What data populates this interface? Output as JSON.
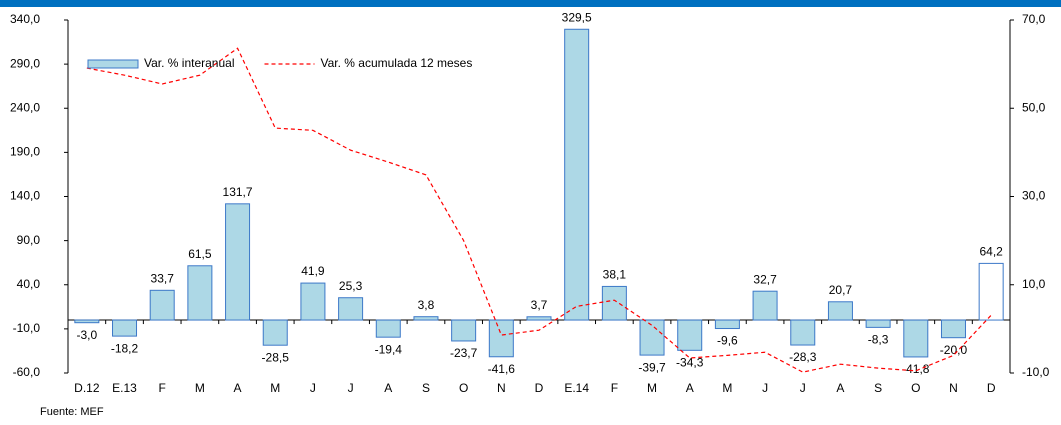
{
  "chart_data": {
    "type": "bar_line",
    "categories": [
      "D.12",
      "E.13",
      "F",
      "M",
      "A",
      "M",
      "J",
      "J",
      "A",
      "S",
      "O",
      "N",
      "D",
      "E.14",
      "F",
      "M",
      "A",
      "M",
      "J",
      "J",
      "A",
      "S",
      "O",
      "N",
      "D"
    ],
    "series": [
      {
        "name": "Var. % interanual",
        "type": "bar",
        "color": "#add8e6",
        "edge": "#3c78c8",
        "colors": [
          "#add8e6",
          "#add8e6",
          "#add8e6",
          "#add8e6",
          "#add8e6",
          "#add8e6",
          "#add8e6",
          "#add8e6",
          "#add8e6",
          "#add8e6",
          "#add8e6",
          "#add8e6",
          "#add8e6",
          "#add8e6",
          "#add8e6",
          "#add8e6",
          "#add8e6",
          "#add8e6",
          "#add8e6",
          "#add8e6",
          "#add8e6",
          "#add8e6",
          "#add8e6",
          "#add8e6",
          "#ffffff"
        ],
        "values": [
          -3.0,
          -18.2,
          33.7,
          61.5,
          131.7,
          -28.5,
          41.9,
          25.3,
          -19.4,
          3.8,
          -23.7,
          -41.6,
          3.7,
          329.5,
          38.1,
          -39.7,
          -34.3,
          -9.6,
          32.7,
          -28.3,
          20.7,
          -8.3,
          -41.8,
          -20.0,
          64.2
        ],
        "value_labels": [
          "-3,0",
          "-18,2",
          "33,7",
          "61,5",
          "131,7",
          "-28,5",
          "41,9",
          "25,3",
          "-19,4",
          "3,8",
          "-23,7",
          "-41,6",
          "3,7",
          "329,5",
          "38,1",
          "-39,7",
          "-34,3",
          "-9,6",
          "32,7",
          "-28,3",
          "20,7",
          "-8,3",
          "-41,8",
          "-20,0",
          "64,2"
        ]
      },
      {
        "name": "Var. % acumulada 12 meses",
        "type": "line",
        "axis": "y2",
        "color": "#ff0000",
        "values": [
          59.1,
          57.5,
          55.5,
          57.5,
          63.6,
          45.5,
          45.0,
          40.5,
          37.8,
          34.9,
          20.0,
          -1.4,
          -0.3,
          5.1,
          6.5,
          0.8,
          -6.6,
          -6.0,
          -5.3,
          -9.8,
          -8.0,
          -8.9,
          -9.5,
          -6.0,
          3.1
        ]
      }
    ],
    "ylim": [
      -60,
      340
    ],
    "yticks": [
      {
        "value": -60,
        "label": "-60,0"
      },
      {
        "value": -10,
        "label": "-10,0"
      },
      {
        "value": 40,
        "label": "40,0"
      },
      {
        "value": 90,
        "label": "90,0"
      },
      {
        "value": 140,
        "label": "140,0"
      },
      {
        "value": 190,
        "label": "190,0"
      },
      {
        "value": 240,
        "label": "240,0"
      },
      {
        "value": 290,
        "label": "290,0"
      },
      {
        "value": 340,
        "label": "340,0"
      }
    ],
    "y2lim": [
      -10,
      70
    ],
    "y2ticks": [
      {
        "value": -10,
        "label": "-10,0"
      },
      {
        "value": 10,
        "label": "10,0"
      },
      {
        "value": 30,
        "label": "30,0"
      },
      {
        "value": 50,
        "label": "50,0"
      },
      {
        "value": 70,
        "label": "70,0"
      }
    ],
    "legend": "upper-left",
    "source": "Fuente: MEF"
  }
}
